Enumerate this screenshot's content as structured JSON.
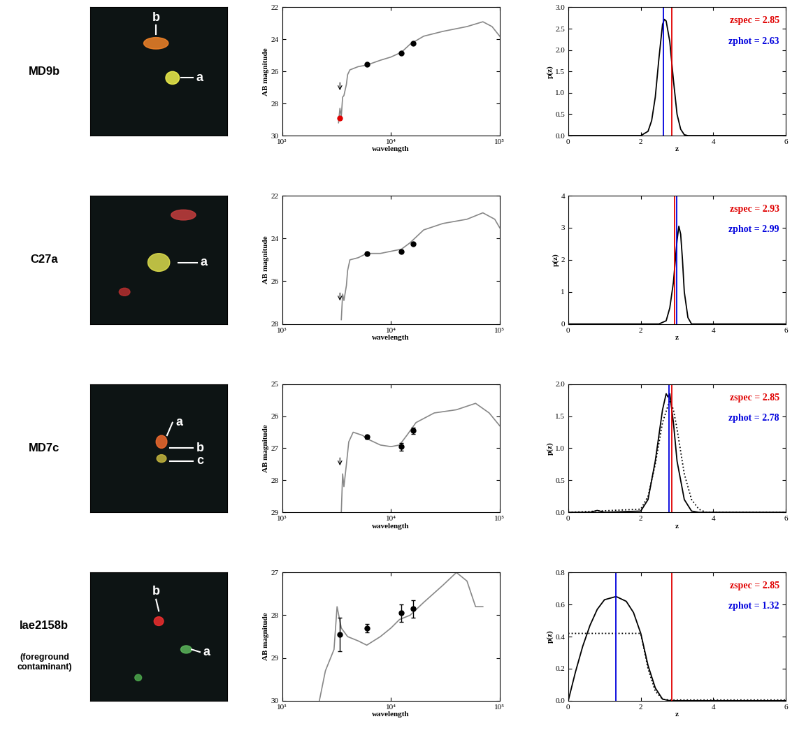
{
  "rows": [
    {
      "label": "MD9b",
      "sublabel": null,
      "image_labels": [
        "b",
        "a"
      ]
    },
    {
      "label": "C27a",
      "sublabel": null,
      "image_labels": [
        "a"
      ]
    },
    {
      "label": "MD7c",
      "sublabel": null,
      "image_labels": [
        "a",
        "b",
        "c"
      ]
    },
    {
      "label": "lae2158b",
      "sublabel": "(foreground\ncontaminant)",
      "image_labels": [
        "b",
        "a"
      ]
    }
  ],
  "chart_data": [
    {
      "type": "sed",
      "x_label": "wavelength",
      "y_label": "AB magnitude",
      "log": "x",
      "xlim": [
        1000,
        100000
      ],
      "xticks": [
        {
          "value": 1000,
          "label": "10³"
        },
        {
          "value": 10000,
          "label": "10⁴"
        },
        {
          "value": 100000,
          "label": "10⁵"
        }
      ],
      "ylim": [
        30,
        22
      ],
      "yticks": [
        22,
        24,
        26,
        28,
        30
      ],
      "series": [
        {
          "type": "line",
          "color": "#888888",
          "x": [
            3300,
            3400,
            3500,
            3600,
            3700,
            3900,
            4000,
            4200,
            5000,
            6000,
            8000,
            10000,
            12500,
            15000,
            20000,
            30000,
            50000,
            70000,
            85000,
            100000
          ],
          "values": [
            29.2,
            28.3,
            28.8,
            27.6,
            27.5,
            26.8,
            26.2,
            25.9,
            25.7,
            25.6,
            25.3,
            25.1,
            24.8,
            24.3,
            23.8,
            23.5,
            23.2,
            22.9,
            23.2,
            23.8
          ]
        },
        {
          "type": "scatter",
          "color": "#000000",
          "marker": "circle",
          "x": [
            6000,
            12500,
            16000
          ],
          "values": [
            25.55,
            24.85,
            24.25
          ]
        },
        {
          "type": "scatter",
          "color": "#e00000",
          "marker": "circle",
          "x": [
            3400
          ],
          "values": [
            28.9
          ]
        },
        {
          "type": "upper_limit",
          "color": "#000000",
          "x": [
            3400
          ],
          "values": [
            27.3
          ]
        }
      ]
    },
    {
      "type": "pz",
      "x_label": "z",
      "y_label": "p(z)",
      "xlim": [
        0,
        6
      ],
      "xticks": [
        0,
        2,
        4,
        6
      ],
      "ylim": [
        0,
        3
      ],
      "yticks": [
        {
          "value": 0,
          "label": "0.0"
        },
        {
          "value": 0.5,
          "label": "0.5"
        },
        {
          "value": 1,
          "label": "1.0"
        },
        {
          "value": 1.5,
          "label": "1.5"
        },
        {
          "value": 2,
          "label": "2.0"
        },
        {
          "value": 2.5,
          "label": "2.5"
        },
        {
          "value": 3,
          "label": "3.0"
        }
      ],
      "series": [
        {
          "line_style": "solid",
          "color": "#000000",
          "x": [
            0,
            2.0,
            2.2,
            2.3,
            2.4,
            2.5,
            2.6,
            2.65,
            2.7,
            2.8,
            2.9,
            3.0,
            3.1,
            3.2,
            3.3,
            6
          ],
          "values": [
            0,
            0,
            0.1,
            0.35,
            0.9,
            1.8,
            2.6,
            2.72,
            2.68,
            2.2,
            1.3,
            0.5,
            0.15,
            0.02,
            0,
            0
          ]
        }
      ],
      "vlines": [
        {
          "value": 2.85,
          "color": "#e00000",
          "label": "zspec = 2.85"
        },
        {
          "value": 2.63,
          "color": "#0000dd",
          "label": "zphot = 2.63"
        }
      ]
    },
    {
      "type": "sed",
      "x_label": "wavelength",
      "y_label": "AB magnitude",
      "log": "x",
      "xlim": [
        1000,
        100000
      ],
      "xticks": [
        {
          "value": 1000,
          "label": "10³"
        },
        {
          "value": 10000,
          "label": "10⁴"
        },
        {
          "value": 100000,
          "label": "10⁵"
        }
      ],
      "ylim": [
        28,
        22
      ],
      "yticks": [
        22,
        24,
        26,
        28
      ],
      "series": [
        {
          "type": "line",
          "color": "#888888",
          "x": [
            3500,
            3600,
            3700,
            3900,
            4000,
            4200,
            5000,
            6000,
            8000,
            10000,
            12500,
            15000,
            20000,
            30000,
            50000,
            70000,
            90000,
            100000
          ],
          "values": [
            27.8,
            26.6,
            26.9,
            26.2,
            25.5,
            25.0,
            24.9,
            24.7,
            24.7,
            24.6,
            24.5,
            24.2,
            23.6,
            23.3,
            23.1,
            22.8,
            23.1,
            23.5
          ]
        },
        {
          "type": "scatter",
          "color": "#000000",
          "marker": "circle",
          "x": [
            6000,
            12500,
            16000
          ],
          "values": [
            24.7,
            24.6,
            24.25
          ]
        },
        {
          "type": "upper_limit",
          "color": "#000000",
          "x": [
            3400
          ],
          "values": [
            27.0
          ]
        }
      ]
    },
    {
      "type": "pz",
      "x_label": "z",
      "y_label": "p(z)",
      "xlim": [
        0,
        6
      ],
      "xticks": [
        0,
        2,
        4,
        6
      ],
      "ylim": [
        0,
        4
      ],
      "yticks": [
        0,
        1,
        2,
        3,
        4
      ],
      "series": [
        {
          "line_style": "solid",
          "color": "#000000",
          "x": [
            0,
            2.5,
            2.7,
            2.8,
            2.9,
            3.0,
            3.05,
            3.1,
            3.15,
            3.2,
            3.3,
            3.4,
            6
          ],
          "values": [
            0,
            0,
            0.1,
            0.5,
            1.3,
            2.6,
            3.05,
            2.8,
            2.0,
            1.0,
            0.2,
            0,
            0
          ]
        }
      ],
      "vlines": [
        {
          "value": 2.93,
          "color": "#e00000",
          "label": "zspec = 2.93"
        },
        {
          "value": 2.99,
          "color": "#0000dd",
          "label": "zphot = 2.99"
        }
      ]
    },
    {
      "type": "sed",
      "x_label": "wavelength",
      "y_label": "AB magnitude",
      "log": "x",
      "xlim": [
        1000,
        100000
      ],
      "xticks": [
        {
          "value": 1000,
          "label": "10³"
        },
        {
          "value": 10000,
          "label": "10⁴"
        },
        {
          "value": 100000,
          "label": "10⁵"
        }
      ],
      "ylim": [
        29,
        25
      ],
      "yticks": [
        25,
        26,
        27,
        28,
        29
      ],
      "series": [
        {
          "type": "line",
          "color": "#888888",
          "x": [
            3500,
            3600,
            3700,
            3900,
            4100,
            4500,
            5500,
            6000,
            8000,
            10000,
            12000,
            14000,
            17000,
            25000,
            40000,
            60000,
            80000,
            100000
          ],
          "values": [
            29.0,
            27.8,
            28.2,
            27.5,
            26.8,
            26.5,
            26.6,
            26.7,
            26.9,
            26.95,
            26.9,
            26.6,
            26.2,
            25.9,
            25.8,
            25.6,
            25.9,
            26.3
          ]
        },
        {
          "type": "scatter",
          "color": "#000000",
          "marker": "circle",
          "x": [
            6000,
            12500,
            16000
          ],
          "values": [
            26.65,
            26.95,
            26.45
          ],
          "errors": [
            0.05,
            0.12,
            0.1
          ]
        },
        {
          "type": "upper_limit",
          "color": "#000000",
          "x": [
            3400
          ],
          "values": [
            27.6
          ]
        }
      ]
    },
    {
      "type": "pz",
      "x_label": "z",
      "y_label": "p(z)",
      "xlim": [
        0,
        6
      ],
      "xticks": [
        0,
        2,
        4,
        6
      ],
      "ylim": [
        0,
        2
      ],
      "yticks": [
        {
          "value": 0,
          "label": "0.0"
        },
        {
          "value": 0.5,
          "label": "0.5"
        },
        {
          "value": 1,
          "label": "1.0"
        },
        {
          "value": 1.5,
          "label": "1.5"
        },
        {
          "value": 2,
          "label": "2.0"
        }
      ],
      "series": [
        {
          "line_style": "solid",
          "color": "#000000",
          "x": [
            0,
            0.6,
            0.8,
            1.0,
            2.0,
            2.2,
            2.4,
            2.6,
            2.7,
            2.75,
            2.8,
            2.9,
            3.0,
            3.2,
            3.4,
            3.6,
            6
          ],
          "values": [
            0,
            0,
            0.03,
            0,
            0.02,
            0.2,
            0.8,
            1.6,
            1.85,
            1.8,
            1.85,
            1.4,
            0.8,
            0.2,
            0.02,
            0,
            0
          ]
        },
        {
          "line_style": "dotted",
          "color": "#000000",
          "x": [
            0,
            2.0,
            2.2,
            2.4,
            2.6,
            2.8,
            2.9,
            3.0,
            3.2,
            3.4,
            3.6,
            3.8,
            6
          ],
          "values": [
            0,
            0.05,
            0.25,
            0.75,
            1.4,
            1.75,
            1.6,
            1.3,
            0.6,
            0.2,
            0.05,
            0,
            0
          ]
        }
      ],
      "vlines": [
        {
          "value": 2.85,
          "color": "#e00000",
          "label": "zspec = 2.85"
        },
        {
          "value": 2.78,
          "color": "#0000dd",
          "label": "zphot = 2.78"
        }
      ]
    },
    {
      "type": "sed",
      "x_label": "wavelength",
      "y_label": "AB magnitude",
      "log": "x",
      "xlim": [
        1000,
        100000
      ],
      "xticks": [
        {
          "value": 1000,
          "label": "10³"
        },
        {
          "value": 10000,
          "label": "10⁴"
        },
        {
          "value": 100000,
          "label": "10⁵"
        }
      ],
      "ylim": [
        30,
        27
      ],
      "yticks": [
        27,
        28,
        29,
        30
      ],
      "series": [
        {
          "type": "line",
          "color": "#888888",
          "x": [
            2200,
            2500,
            3000,
            3200,
            3500,
            4000,
            5000,
            6000,
            8000,
            10000,
            12000,
            15000,
            20000,
            30000,
            40000,
            50000,
            60000,
            70000
          ],
          "values": [
            30.0,
            29.3,
            28.8,
            27.8,
            28.3,
            28.5,
            28.6,
            28.7,
            28.5,
            28.3,
            28.1,
            28.0,
            27.7,
            27.3,
            27.0,
            27.2,
            27.8,
            27.8
          ]
        },
        {
          "type": "scatter",
          "color": "#000000",
          "marker": "circle",
          "x": [
            3400,
            6000,
            12500,
            16000
          ],
          "values": [
            28.45,
            28.3,
            27.95,
            27.85
          ],
          "errors": [
            0.4,
            0.1,
            0.2,
            0.2
          ]
        }
      ]
    },
    {
      "type": "pz",
      "x_label": "z",
      "y_label": "p(z)",
      "xlim": [
        0,
        6
      ],
      "xticks": [
        0,
        2,
        4,
        6
      ],
      "ylim": [
        0,
        0.8
      ],
      "yticks": [
        {
          "value": 0,
          "label": "0.0"
        },
        {
          "value": 0.2,
          "label": "0.2"
        },
        {
          "value": 0.4,
          "label": "0.4"
        },
        {
          "value": 0.6,
          "label": "0.6"
        },
        {
          "value": 0.8,
          "label": "0.8"
        }
      ],
      "series": [
        {
          "line_style": "solid",
          "color": "#000000",
          "x": [
            0,
            0.2,
            0.4,
            0.6,
            0.8,
            1.0,
            1.32,
            1.6,
            1.8,
            2.0,
            2.2,
            2.4,
            2.6,
            2.8,
            6
          ],
          "values": [
            0,
            0.18,
            0.34,
            0.47,
            0.57,
            0.63,
            0.65,
            0.62,
            0.55,
            0.42,
            0.22,
            0.08,
            0.01,
            0,
            0
          ]
        },
        {
          "line_style": "dotted",
          "color": "#000000",
          "x": [
            0,
            1.0,
            2.0,
            2.2,
            2.4,
            2.6,
            2.8,
            6
          ],
          "values": [
            0.42,
            0.42,
            0.42,
            0.2,
            0.06,
            0.01,
            0.005,
            0.005
          ]
        }
      ],
      "vlines": [
        {
          "value": 2.85,
          "color": "#e00000",
          "label": "zspec = 2.85"
        },
        {
          "value": 1.32,
          "color": "#0000dd",
          "label": "zphot = 1.32"
        }
      ]
    }
  ]
}
